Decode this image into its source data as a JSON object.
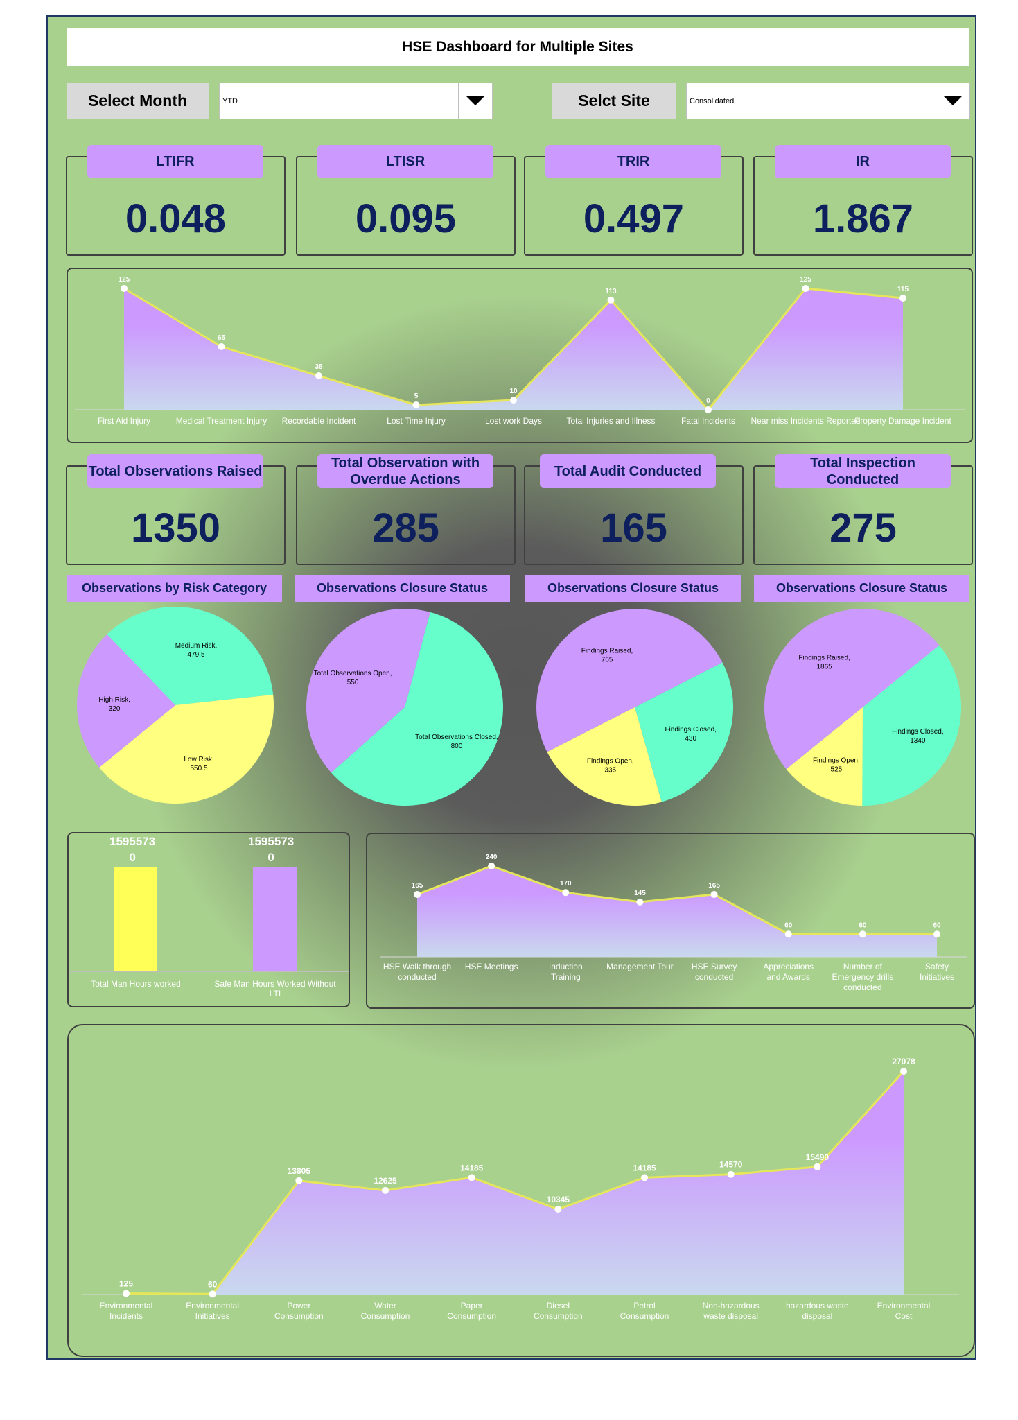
{
  "title": "HSE Dashboard for Multiple Sites",
  "filters": {
    "month_label": "Select Month",
    "month_value": "YTD",
    "site_label": "Selct Site",
    "site_value": "Consolidated"
  },
  "kpis": [
    {
      "label": "LTIFR",
      "value": "0.048"
    },
    {
      "label": "LTISR",
      "value": "0.095"
    },
    {
      "label": "TRIR",
      "value": "0.497"
    },
    {
      "label": "IR",
      "value": "1.867"
    }
  ],
  "counts": [
    {
      "label": "Total Observations Raised",
      "value": "1350"
    },
    {
      "label": "Total Observation with Overdue Actions",
      "value": "285"
    },
    {
      "label": "Total Audit Conducted",
      "value": "165"
    },
    {
      "label": "Total Inspection Conducted",
      "value": "275"
    }
  ],
  "colors": {
    "background": "#a9d18e",
    "purple": "#cc99ff",
    "mint": "#66ffcc",
    "yellow": "#ffff80",
    "navy": "#0d1f5c",
    "line": "#e6e65a"
  },
  "chart_data": [
    {
      "type": "area",
      "categories": [
        "First Aid Injury",
        "Medical Treatment Injury",
        "Recordable Incident",
        "Lost Time Injury",
        "Lost work Days",
        "Total Injuries and Illness",
        "Fatal Incidents",
        "Near miss Incidents Reported",
        "Property Damage Incident"
      ],
      "values": [
        125,
        65,
        35,
        5,
        10,
        113,
        0,
        125,
        115
      ]
    },
    {
      "type": "pie",
      "title": "Observations  by Risk Category",
      "slices": [
        {
          "label": "Medium Risk, 479.5",
          "value": 479.5,
          "color": "#66ffcc"
        },
        {
          "label": "Low Risk, 550.5",
          "value": 550.5,
          "color": "#ffff80"
        },
        {
          "label": "High Risk, 320",
          "value": 320,
          "color": "#cc99ff"
        }
      ]
    },
    {
      "type": "pie",
      "title": "Observations  Closure Status",
      "slices": [
        {
          "label": "Total Observations Closed, 800",
          "value": 800,
          "color": "#66ffcc"
        },
        {
          "label": "Total Observations Open, 550",
          "value": 550,
          "color": "#cc99ff"
        }
      ]
    },
    {
      "type": "pie",
      "title": "Observations  Closure Status",
      "slices": [
        {
          "label": "Findings Raised, 765",
          "value": 765,
          "color": "#cc99ff"
        },
        {
          "label": "Findings Closed, 430",
          "value": 430,
          "color": "#66ffcc"
        },
        {
          "label": "Findings Open, 335",
          "value": 335,
          "color": "#ffff80"
        }
      ]
    },
    {
      "type": "pie",
      "title": "Observations  Closure Status",
      "slices": [
        {
          "label": "Findings Raised, 1865",
          "value": 1865,
          "color": "#cc99ff"
        },
        {
          "label": "Findings Closed, 1340",
          "value": 1340,
          "color": "#66ffcc"
        },
        {
          "label": "Findings Open, 525",
          "value": 525,
          "color": "#ffff80"
        }
      ]
    },
    {
      "type": "bar",
      "categories": [
        "Total Man Hours worked",
        "Safe Man Hours Worked Without LTI"
      ],
      "values": [
        15955730,
        15955730
      ],
      "data_labels": [
        "15955730",
        "15955730"
      ],
      "colors": [
        "#ffff57",
        "#cc99ff"
      ]
    },
    {
      "type": "area",
      "categories": [
        "HSE Walk through conducted",
        "HSE Meetings",
        "Induction Training",
        "Management Tour",
        "HSE Survey conducted",
        "Appreciations and Awards",
        "Number of Emergency drills conducted",
        "Safety Initiatives"
      ],
      "values": [
        165,
        240,
        170,
        145,
        165,
        60,
        60,
        60
      ]
    },
    {
      "type": "area",
      "categories": [
        "Environmental Incidents",
        "Environmental Initiatives",
        "Power Consumption",
        "Water Consumption",
        "Paper Consumption",
        "Diesel Consumption",
        "Petrol Consumption",
        "Non-hazardous waste disposal",
        "hazardous waste disposal",
        "Environmental Cost"
      ],
      "values": [
        125,
        60,
        13805,
        12625,
        14185,
        10345,
        14185,
        14570,
        15490,
        27078
      ]
    }
  ]
}
